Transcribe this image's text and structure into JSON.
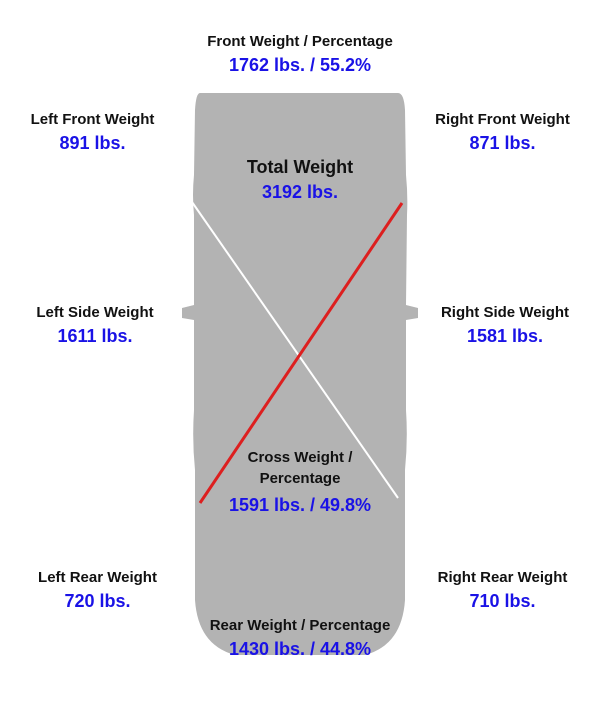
{
  "colors": {
    "value_text": "#1a12e6",
    "label_text": "#111111",
    "car_body": "#b3b3b3",
    "front_cross_line": "#ffffff",
    "rear_cross_line": "#dd1f1f"
  },
  "front": {
    "label": "Front Weight / Percentage",
    "value": "1762 lbs. / 55.2%"
  },
  "left_front": {
    "label": "Left Front Weight",
    "value": "891 lbs."
  },
  "right_front": {
    "label": "Right Front Weight",
    "value": "871 lbs."
  },
  "total": {
    "label": "Total Weight",
    "value": "3192 lbs."
  },
  "left_side": {
    "label": "Left Side Weight",
    "value": "1611 lbs."
  },
  "right_side": {
    "label": "Right Side Weight",
    "value": "1581 lbs."
  },
  "cross": {
    "label_line1": "Cross Weight /",
    "label_line2": "Percentage",
    "value": "1591 lbs. / 49.8%"
  },
  "left_rear": {
    "label": "Left Rear Weight",
    "value": "720 lbs."
  },
  "right_rear": {
    "label": "Right Rear Weight",
    "value": "710 lbs."
  },
  "rear": {
    "label": "Rear Weight / Percentage",
    "value": "1430 lbs. / 44.8%"
  }
}
